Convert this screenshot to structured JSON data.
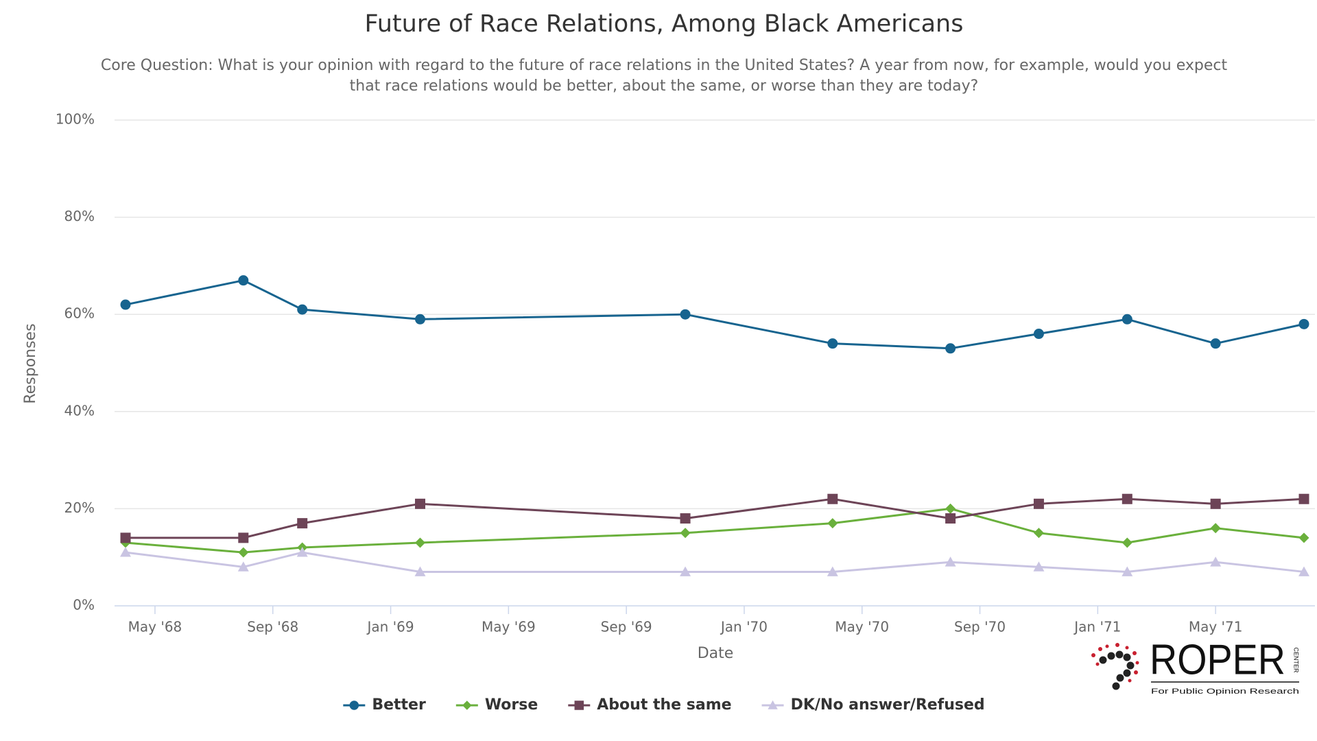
{
  "chart_data": {
    "type": "line",
    "title": "Future of Race Relations, Among Black Americans",
    "subtitle": [
      "Core Question: What is your opinion with regard to the future of race relations in the United States? A year from now, for example, would you expect",
      "that race relations would be better, about the same, or worse than they are today?"
    ],
    "x_label": "Date",
    "y_label": "Responses",
    "x": [
      "1968-04",
      "1968-08",
      "1968-10",
      "1969-02",
      "1969-11",
      "1970-04",
      "1970-08",
      "1970-11",
      "1971-02",
      "1971-05",
      "1971-08"
    ],
    "xlim": [
      "1968-04",
      "1971-08"
    ],
    "xticks": [
      {
        "value": "1968-05",
        "label": "May '68"
      },
      {
        "value": "1968-09",
        "label": "Sep '68"
      },
      {
        "value": "1969-01",
        "label": "Jan '69"
      },
      {
        "value": "1969-05",
        "label": "May '69"
      },
      {
        "value": "1969-09",
        "label": "Sep '69"
      },
      {
        "value": "1970-01",
        "label": "Jan '70"
      },
      {
        "value": "1970-05",
        "label": "May '70"
      },
      {
        "value": "1970-09",
        "label": "Sep '70"
      },
      {
        "value": "1971-01",
        "label": "Jan '71"
      },
      {
        "value": "1971-05",
        "label": "May '71"
      }
    ],
    "ylim": [
      0,
      100
    ],
    "yticks": [
      {
        "value": 0,
        "label": "0%"
      },
      {
        "value": 20,
        "label": "20%"
      },
      {
        "value": 40,
        "label": "40%"
      },
      {
        "value": 60,
        "label": "60%"
      },
      {
        "value": 80,
        "label": "80%"
      },
      {
        "value": 100,
        "label": "100%"
      }
    ],
    "grid": true,
    "series": [
      {
        "name": "Better",
        "color": "#17648f",
        "marker": "circle",
        "values": [
          62,
          67,
          61,
          59,
          60,
          54,
          53,
          56,
          59,
          54,
          58
        ]
      },
      {
        "name": "Worse",
        "color": "#6ab03c",
        "marker": "diamond",
        "values": [
          13,
          11,
          12,
          13,
          15,
          17,
          20,
          15,
          13,
          16,
          14
        ]
      },
      {
        "name": "About the same",
        "color": "#6d4457",
        "marker": "square",
        "values": [
          14,
          14,
          17,
          21,
          18,
          22,
          18,
          21,
          22,
          21,
          22
        ]
      },
      {
        "name": "DK/No answer/Refused",
        "color": "#c9c4e2",
        "marker": "triangle",
        "values": [
          11,
          8,
          11,
          7,
          7,
          7,
          9,
          8,
          7,
          9,
          7
        ]
      }
    ],
    "logo": {
      "name": "ROPER",
      "side": "CENTER",
      "tagline": "For Public Opinion Research"
    }
  }
}
